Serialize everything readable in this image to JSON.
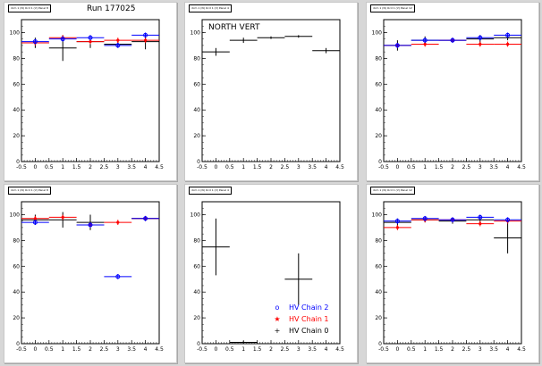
{
  "pads": [
    {
      "title": "dcm 1 (N) Ocd 1 (V) Panel 8"
    },
    {
      "title": "dcm 1 (N) Ocd 1 (V) Panel 4"
    },
    {
      "title": "dcm 1 (N) Ocd 1 (V) Panel 12"
    },
    {
      "title": "dcm 1 (N) Ocd 1 (V) Panel 8"
    },
    {
      "title": "dcm 1 (N) Ocd 1 (V) Panel 4"
    },
    {
      "title": "dcm 1 (N) Ocd 1 (V) Panel 12"
    }
  ],
  "run_label": "Run 177025",
  "north_vert_label": "NORTH VERT",
  "legend": [
    {
      "label": "HV Chain 2",
      "color": "#0000ff",
      "marker": "o"
    },
    {
      "label": "HV Chain 1",
      "color": "#ff0000",
      "marker": "★"
    },
    {
      "label": "HV Chain 0",
      "color": "#000000",
      "marker": "+"
    }
  ],
  "colors": {
    "chain2": "#0000ff",
    "chain1": "#ff0000",
    "chain0": "#000000",
    "pad_bg": "#ffffff",
    "canvas_bg": "#d7d7d7"
  },
  "chart_data": [
    {
      "type": "scatter",
      "xlim": [
        -0.5,
        4.5
      ],
      "ylim": [
        0,
        110
      ],
      "xticks": [
        "-0.5",
        "0",
        "0.5",
        "1",
        "1.5",
        "2",
        "2.5",
        "3",
        "3.5",
        "4",
        "4.5"
      ],
      "yticks": [
        "0",
        "20",
        "40",
        "60",
        "80",
        "100"
      ],
      "series": [
        {
          "chain": 0,
          "points": [
            [
              0,
              92,
              4
            ],
            [
              1,
              88,
              10
            ],
            [
              2,
              93,
              5
            ],
            [
              3,
              91,
              2
            ],
            [
              4,
              93,
              6
            ]
          ]
        },
        {
          "chain": 1,
          "points": [
            [
              0,
              92,
              2
            ],
            [
              1,
              96,
              2
            ],
            [
              2,
              93,
              2
            ],
            [
              3,
              94,
              2
            ],
            [
              4,
              94,
              2
            ]
          ]
        },
        {
          "chain": 2,
          "points": [
            [
              0,
              93,
              2
            ],
            [
              1,
              95,
              2
            ],
            [
              2,
              96,
              2
            ],
            [
              3,
              90,
              2
            ],
            [
              4,
              98,
              2
            ]
          ]
        }
      ]
    },
    {
      "type": "scatter",
      "xlim": [
        -0.5,
        4.5
      ],
      "ylim": [
        0,
        110
      ],
      "xticks": [
        "-0.5",
        "0",
        "0.5",
        "1",
        "1.5",
        "2",
        "2.5",
        "3",
        "3.5",
        "4",
        "4.5"
      ],
      "yticks": [
        "0",
        "20",
        "40",
        "60",
        "80",
        "100"
      ],
      "series": [
        {
          "chain": 0,
          "points": [
            [
              0,
              85,
              3
            ],
            [
              1,
              94,
              2
            ],
            [
              2,
              96,
              1
            ],
            [
              3,
              97,
              1
            ],
            [
              4,
              86,
              2
            ]
          ]
        }
      ]
    },
    {
      "type": "scatter",
      "xlim": [
        -0.5,
        4.5
      ],
      "ylim": [
        0,
        110
      ],
      "xticks": [
        "-0.5",
        "0",
        "0.5",
        "1",
        "1.5",
        "2",
        "2.5",
        "3",
        "3.5",
        "4",
        "4.5"
      ],
      "yticks": [
        "0",
        "20",
        "40",
        "60",
        "80",
        "100"
      ],
      "series": [
        {
          "chain": 0,
          "points": [
            [
              0,
              90,
              4
            ],
            [
              1,
              94,
              3
            ],
            [
              2,
              94,
              2
            ],
            [
              3,
              95,
              3
            ],
            [
              4,
              96,
              2
            ]
          ]
        },
        {
          "chain": 1,
          "points": [
            [
              0,
              90,
              2
            ],
            [
              1,
              91,
              2
            ],
            [
              2,
              94,
              2
            ],
            [
              3,
              91,
              2
            ],
            [
              4,
              91,
              2
            ]
          ]
        },
        {
          "chain": 2,
          "points": [
            [
              0,
              90,
              2
            ],
            [
              1,
              94,
              2
            ],
            [
              2,
              94,
              2
            ],
            [
              3,
              96,
              2
            ],
            [
              4,
              98,
              2
            ]
          ]
        }
      ]
    },
    {
      "type": "scatter",
      "xlim": [
        -0.5,
        4.5
      ],
      "ylim": [
        0,
        110
      ],
      "xticks": [
        "-0.5",
        "0",
        "0.5",
        "1",
        "1.5",
        "2",
        "2.5",
        "3",
        "3.5",
        "4",
        "4.5"
      ],
      "yticks": [
        "0",
        "20",
        "40",
        "60",
        "80",
        "100"
      ],
      "series": [
        {
          "chain": 0,
          "points": [
            [
              0,
              96,
              4
            ],
            [
              1,
              96,
              6
            ],
            [
              2,
              94,
              6
            ],
            [
              4,
              97,
              1
            ]
          ]
        },
        {
          "chain": 1,
          "points": [
            [
              0,
              97,
              2
            ],
            [
              1,
              98,
              2
            ],
            [
              2,
              92,
              2
            ],
            [
              3,
              94,
              2
            ],
            [
              4,
              97,
              2
            ]
          ]
        },
        {
          "chain": 2,
          "points": [
            [
              0,
              94,
              2
            ],
            [
              2,
              92,
              2
            ],
            [
              3,
              52,
              2
            ],
            [
              4,
              97,
              2
            ]
          ]
        }
      ]
    },
    {
      "type": "scatter",
      "xlim": [
        -0.5,
        4.5
      ],
      "ylim": [
        0,
        110
      ],
      "xticks": [
        "-0.5",
        "0",
        "0.5",
        "1",
        "1.5",
        "2",
        "2.5",
        "3",
        "3.5",
        "4",
        "4.5"
      ],
      "yticks": [
        "0",
        "20",
        "40",
        "60",
        "80",
        "100"
      ],
      "series": [
        {
          "chain": 0,
          "points": [
            [
              0,
              75,
              22
            ],
            [
              1,
              1,
              1
            ],
            [
              3,
              50,
              20
            ]
          ]
        }
      ]
    },
    {
      "type": "scatter",
      "xlim": [
        -0.5,
        4.5
      ],
      "ylim": [
        0,
        110
      ],
      "xticks": [
        "-0.5",
        "0",
        "0.5",
        "1",
        "1.5",
        "2",
        "2.5",
        "3",
        "3.5",
        "4",
        "4.5"
      ],
      "yticks": [
        "0",
        "20",
        "40",
        "60",
        "80",
        "100"
      ],
      "series": [
        {
          "chain": 0,
          "points": [
            [
              0,
              94,
              3
            ],
            [
              1,
              96,
              2
            ],
            [
              2,
              95,
              2
            ],
            [
              3,
              96,
              3
            ],
            [
              4,
              82,
              12
            ]
          ]
        },
        {
          "chain": 1,
          "points": [
            [
              0,
              90,
              2
            ],
            [
              1,
              96,
              2
            ],
            [
              2,
              96,
              2
            ],
            [
              3,
              93,
              2
            ],
            [
              4,
              95,
              2
            ]
          ]
        },
        {
          "chain": 2,
          "points": [
            [
              0,
              95,
              2
            ],
            [
              1,
              97,
              2
            ],
            [
              2,
              96,
              2
            ],
            [
              3,
              98,
              2
            ],
            [
              4,
              96,
              2
            ]
          ]
        }
      ]
    }
  ]
}
